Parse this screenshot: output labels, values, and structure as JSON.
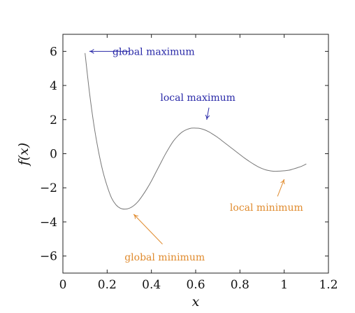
{
  "chart_data": {
    "type": "line",
    "title": "",
    "xlabel": "x",
    "ylabel": "f(x)",
    "xlim": [
      0,
      1.2
    ],
    "ylim": [
      -7,
      7
    ],
    "x_ticks": [
      0,
      0.2,
      0.4,
      0.6,
      0.8,
      1,
      1.2
    ],
    "x_tick_labels": [
      "0",
      "0.2",
      "0.4",
      "0.6",
      "0.8",
      "1",
      "1.2"
    ],
    "y_ticks": [
      -6,
      -4,
      -2,
      0,
      2,
      4,
      6
    ],
    "y_tick_labels": [
      "−6",
      "−4",
      "−2",
      "0",
      "2",
      "4",
      "6"
    ],
    "grid": false,
    "series": [
      {
        "color": "#777777",
        "x": [
          0.1,
          0.12,
          0.14,
          0.16,
          0.18,
          0.2,
          0.22,
          0.24,
          0.26,
          0.28,
          0.3,
          0.32,
          0.34,
          0.36,
          0.38,
          0.4,
          0.42,
          0.44,
          0.46,
          0.48,
          0.5,
          0.52,
          0.54,
          0.56,
          0.58,
          0.6,
          0.62,
          0.64,
          0.66,
          0.68,
          0.7,
          0.72,
          0.74,
          0.76,
          0.78,
          0.8,
          0.82,
          0.84,
          0.86,
          0.88,
          0.9,
          0.92,
          0.94,
          0.96,
          0.98,
          1.0,
          1.02,
          1.04,
          1.06,
          1.08,
          1.1
        ],
        "y": [
          5.9,
          3.6,
          1.7,
          0.2,
          -1.0,
          -1.9,
          -2.6,
          -3.0,
          -3.2,
          -3.25,
          -3.2,
          -3.05,
          -2.8,
          -2.45,
          -2.05,
          -1.6,
          -1.1,
          -0.6,
          -0.1,
          0.35,
          0.75,
          1.05,
          1.28,
          1.42,
          1.5,
          1.5,
          1.48,
          1.4,
          1.28,
          1.12,
          0.95,
          0.75,
          0.55,
          0.35,
          0.15,
          -0.05,
          -0.25,
          -0.43,
          -0.6,
          -0.75,
          -0.87,
          -0.96,
          -1.01,
          -1.03,
          -1.02,
          -1.0,
          -0.97,
          -0.9,
          -0.82,
          -0.73,
          -0.6
        ]
      }
    ],
    "annotations": [
      {
        "text": "global maximum",
        "color": "#2a2aa8",
        "text_at": [
          0.41,
          6.0
        ],
        "arrow_from": [
          0.3,
          6.0
        ],
        "arrow_to": [
          0.12,
          6.0
        ]
      },
      {
        "text": "local maximum",
        "color": "#2a2aa8",
        "text_at": [
          0.61,
          3.3
        ],
        "arrow_from": [
          0.66,
          2.7
        ],
        "arrow_to": [
          0.65,
          2.0
        ]
      },
      {
        "text": "local minimum",
        "color": "#e08b2e",
        "text_at": [
          0.92,
          -3.15
        ],
        "arrow_from": [
          0.97,
          -2.5
        ],
        "arrow_to": [
          1.0,
          -1.5
        ]
      },
      {
        "text": "global minimum",
        "color": "#e08b2e",
        "text_at": [
          0.46,
          -6.05
        ],
        "arrow_from": [
          0.45,
          -5.3
        ],
        "arrow_to": [
          0.32,
          -3.55
        ]
      }
    ]
  }
}
